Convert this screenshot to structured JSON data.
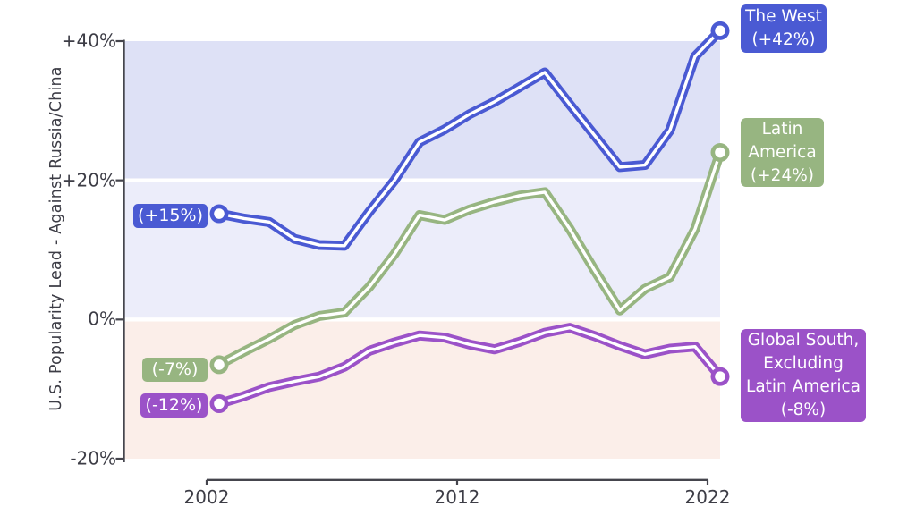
{
  "y_axis": {
    "title": "U.S. Popularity Lead - Against Russia/China",
    "ticks": [
      {
        "label": "+40%",
        "value": 40
      },
      {
        "label": "+20%",
        "value": 20
      },
      {
        "label": "0%",
        "value": 0
      },
      {
        "label": "-20%",
        "value": -20
      }
    ]
  },
  "x_axis": {
    "ticks": [
      {
        "label": "2002",
        "year": 2002
      },
      {
        "label": "2012",
        "year": 2012
      },
      {
        "label": "2022",
        "year": 2022
      }
    ]
  },
  "colors": {
    "west": "#4a5ad3",
    "latam": "#97b581",
    "gsouth": "#9b52c8",
    "band_above_20": "#dee1f6",
    "band_0_to_20": "#ecedfa",
    "band_below_0": "#fbeee9",
    "axis": "#45454d",
    "tick_text": "#3d3d46",
    "line_core": "#ffffff"
  },
  "chart_data": {
    "type": "line",
    "title": "",
    "xlabel": "",
    "ylabel": "U.S. Popularity Lead - Against Russia/China",
    "ylim": [
      -20,
      40
    ],
    "xlim_ticks": [
      2002,
      2012,
      2022
    ],
    "grid": "white horizontal separators at 0% and +20%",
    "legend_position": "colored label boxes at line start and end",
    "bands": [
      {
        "from": 20,
        "to": 40,
        "color": "#dee1f6"
      },
      {
        "from": 0,
        "to": 20,
        "color": "#ecedfa"
      },
      {
        "from": -20,
        "to": 0,
        "color": "#fbeee9"
      }
    ],
    "x": [
      2002,
      2003,
      2004,
      2005,
      2006,
      2007,
      2008,
      2009,
      2010,
      2011,
      2012,
      2013,
      2014,
      2015,
      2016,
      2017,
      2018,
      2019,
      2020,
      2021,
      2022
    ],
    "series": [
      {
        "name": "The West",
        "color": "#4a5ad3",
        "start_label": "(+15%)",
        "end_label": "The West\n(+42%)",
        "start_value": 15,
        "end_value": 42,
        "values": [
          15.2,
          14.5,
          14.0,
          11.6,
          10.7,
          10.6,
          15.5,
          20.0,
          25.5,
          27.3,
          29.5,
          31.3,
          33.4,
          35.5,
          30.9,
          26.4,
          21.9,
          22.2,
          27.2,
          37.8,
          41.5
        ]
      },
      {
        "name": "Latin America",
        "color": "#97b581",
        "start_label": "(-7%)",
        "end_label": "Latin\nAmerica\n(+24%)",
        "start_value": -7,
        "end_value": 24,
        "values": [
          -6.5,
          -4.6,
          -2.8,
          -0.8,
          0.5,
          1.0,
          4.7,
          9.4,
          15.0,
          14.3,
          15.8,
          16.9,
          17.8,
          18.3,
          13.0,
          7.0,
          1.3,
          4.4,
          6.1,
          13.0,
          24.0
        ]
      },
      {
        "name": "Global South, Excluding Latin America",
        "color": "#9b52c8",
        "start_label": "(-12%)",
        "end_label": "Global South,\nExcluding\nLatin America\n(-8%)",
        "start_value": -12,
        "end_value": -8,
        "values": [
          -12.1,
          -11.0,
          -9.7,
          -8.9,
          -8.2,
          -6.8,
          -4.5,
          -3.3,
          -2.3,
          -2.6,
          -3.6,
          -4.3,
          -3.2,
          -1.9,
          -1.2,
          -2.4,
          -3.8,
          -5.0,
          -4.2,
          -3.9,
          -8.2
        ]
      }
    ]
  }
}
